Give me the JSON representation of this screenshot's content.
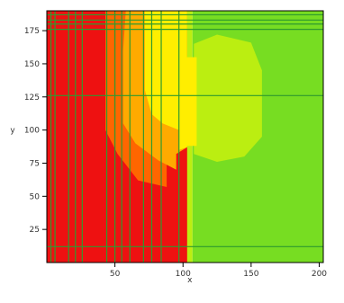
{
  "chart_data": {
    "type": "heatmap",
    "title": "",
    "xlabel": "x",
    "ylabel": "y",
    "xlim": [
      0,
      203
    ],
    "ylim": [
      0,
      190
    ],
    "x_ticks": [
      {
        "value": 50,
        "label": "50"
      },
      {
        "value": 100,
        "label": "100"
      },
      {
        "value": 150,
        "label": "150"
      },
      {
        "value": 200,
        "label": "200"
      }
    ],
    "y_ticks": [
      {
        "value": 25,
        "label": "25"
      },
      {
        "value": 50,
        "label": "50"
      },
      {
        "value": 75,
        "label": "75"
      },
      {
        "value": 100,
        "label": "100"
      },
      {
        "value": 125,
        "label": "125"
      },
      {
        "value": 150,
        "label": "150"
      },
      {
        "value": 175,
        "label": "175"
      }
    ],
    "colors": {
      "level_1": "#ee1111",
      "level_2": "#ff6600",
      "level_3": "#ffaa00",
      "level_4": "#ffee00",
      "level_5": "#bbee11",
      "level_6": "#77dd22",
      "level_7": "#33dd44",
      "grid_line": "#2e9a2e",
      "axis": "#000000"
    },
    "regions": [
      {
        "level": "level_1",
        "points": [
          [
            0,
            0
          ],
          [
            105,
            0
          ],
          [
            105,
            190
          ],
          [
            0,
            190
          ]
        ]
      },
      {
        "level": "level_2",
        "points": [
          [
            43,
            190
          ],
          [
            103,
            190
          ],
          [
            103,
            87
          ],
          [
            88,
            82
          ],
          [
            88,
            57
          ],
          [
            67,
            62
          ],
          [
            52,
            82
          ],
          [
            43,
            100
          ]
        ]
      },
      {
        "level": "level_3",
        "points": [
          [
            58,
            190
          ],
          [
            103,
            190
          ],
          [
            103,
            87
          ],
          [
            95,
            82
          ],
          [
            95,
            70
          ],
          [
            82,
            77
          ],
          [
            65,
            90
          ],
          [
            56,
            105
          ],
          [
            56,
            160
          ]
        ]
      },
      {
        "level": "level_4",
        "points": [
          [
            72,
            190
          ],
          [
            103,
            190
          ],
          [
            103,
            87
          ],
          [
            97,
            85
          ],
          [
            97,
            100
          ],
          [
            85,
            105
          ],
          [
            77,
            112
          ],
          [
            72,
            130
          ]
        ]
      },
      {
        "level": "level_5",
        "points": [
          [
            103,
            0
          ],
          [
            107,
            0
          ],
          [
            107,
            190
          ],
          [
            103,
            190
          ]
        ]
      },
      {
        "level": "level_6",
        "points": [
          [
            107,
            0
          ],
          [
            203,
            0
          ],
          [
            203,
            190
          ],
          [
            107,
            190
          ]
        ]
      },
      {
        "level": "level_5",
        "points": [
          [
            108,
            82
          ],
          [
            108,
            165
          ],
          [
            125,
            172
          ],
          [
            150,
            166
          ],
          [
            158,
            145
          ],
          [
            158,
            95
          ],
          [
            145,
            80
          ],
          [
            125,
            76
          ]
        ]
      },
      {
        "level": "level_4",
        "points": [
          [
            100,
            88
          ],
          [
            110,
            88
          ],
          [
            110,
            155
          ],
          [
            100,
            155
          ]
        ]
      }
    ],
    "grid_lines": {
      "x": [
        3,
        6,
        16,
        21,
        26,
        44,
        50,
        55,
        61,
        71,
        77,
        84,
        97
      ],
      "y": [
        12,
        126,
        176,
        180,
        183,
        187
      ]
    }
  }
}
